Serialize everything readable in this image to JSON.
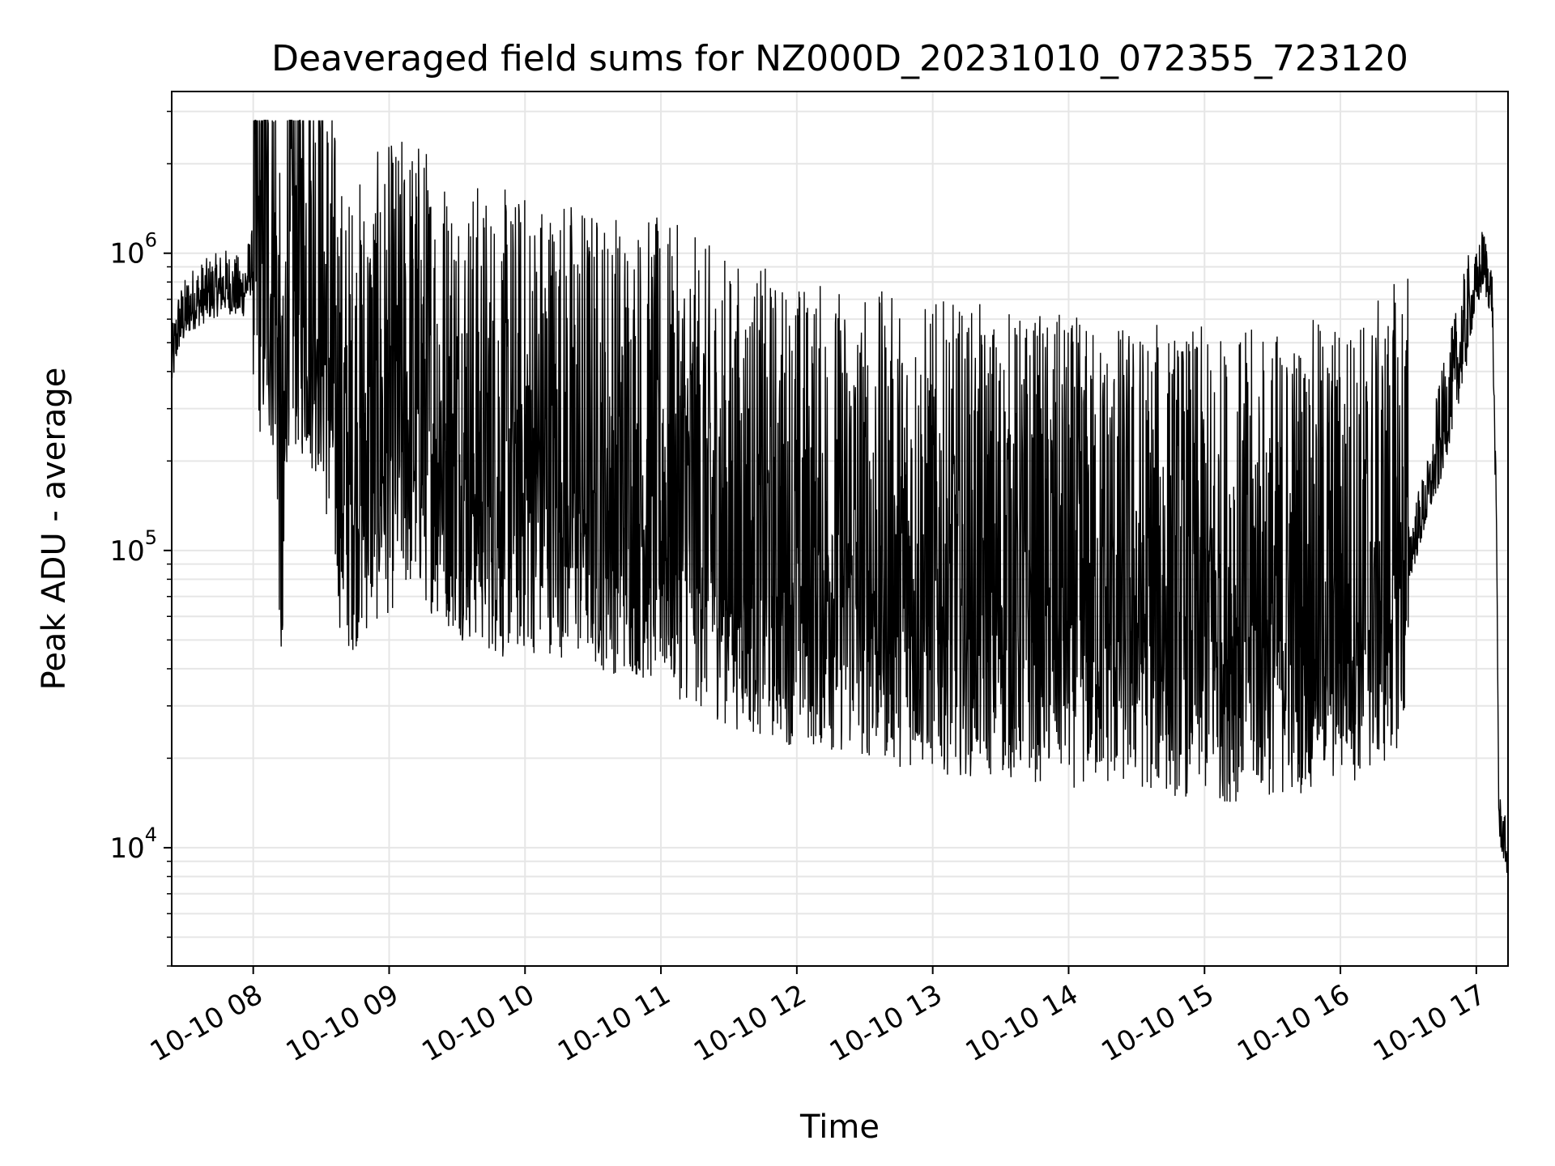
{
  "chart_data": {
    "type": "line",
    "title": "Deaveraged field sums for NZ000D_20231010_072355_723120",
    "xlabel": "Time",
    "ylabel": "Peak ADU - average",
    "yscale": "log",
    "ylim": [
      4000,
      3500000
    ],
    "xlim": [
      "2023-10-10 07:24:00",
      "2023-10-10 17:14:00"
    ],
    "grid": true,
    "line_color": "#000000",
    "x_ticks": [
      {
        "label": "10-10 08",
        "value": "2023-10-10 08:00"
      },
      {
        "label": "10-10 09",
        "value": "2023-10-10 09:00"
      },
      {
        "label": "10-10 10",
        "value": "2023-10-10 10:00"
      },
      {
        "label": "10-10 11",
        "value": "2023-10-10 11:00"
      },
      {
        "label": "10-10 12",
        "value": "2023-10-10 12:00"
      },
      {
        "label": "10-10 13",
        "value": "2023-10-10 13:00"
      },
      {
        "label": "10-10 14",
        "value": "2023-10-10 14:00"
      },
      {
        "label": "10-10 15",
        "value": "2023-10-10 15:00"
      },
      {
        "label": "10-10 16",
        "value": "2023-10-10 16:00"
      },
      {
        "label": "10-10 17",
        "value": "2023-10-10 17:00"
      }
    ],
    "y_ticks": [
      {
        "base": "10",
        "exp": "4",
        "value": 10000
      },
      {
        "base": "10",
        "exp": "5",
        "value": 100000
      },
      {
        "base": "10",
        "exp": "6",
        "value": 1000000
      }
    ],
    "series": [
      {
        "values_note": "",
        "points": [
          [
            "2023-10-10 07:24",
            400000
          ],
          [
            "2023-10-10 07:27",
            550000
          ],
          [
            "2023-10-10 07:33",
            650000
          ],
          [
            "2023-10-10 07:40",
            700000
          ],
          [
            "2023-10-10 07:48",
            750000
          ],
          [
            "2023-10-10 07:55",
            700000
          ],
          [
            "2023-10-10 08:00",
            900000
          ],
          [
            "2023-10-10 08:10",
            700000
          ],
          [
            "2023-10-10 08:13",
            60000
          ],
          [
            "2023-10-10 08:15",
            800000
          ],
          [
            "2023-10-10 08:30",
            600000
          ],
          [
            "2023-10-10 08:40",
            150000
          ],
          [
            "2023-10-10 08:55",
            200000
          ],
          [
            "2023-10-10 09:10",
            250000
          ],
          [
            "2023-10-10 09:30",
            180000
          ],
          [
            "2023-10-10 09:50",
            150000
          ],
          [
            "2023-10-10 10:10",
            160000
          ],
          [
            "2023-10-10 10:30",
            140000
          ],
          [
            "2023-10-10 10:50",
            130000
          ],
          [
            "2023-10-10 11:10",
            110000
          ],
          [
            "2023-10-10 11:30",
            90000
          ],
          [
            "2023-10-10 11:50",
            80000
          ],
          [
            "2023-10-10 12:10",
            75000
          ],
          [
            "2023-10-10 12:30",
            70000
          ],
          [
            "2023-10-10 12:50",
            65000
          ],
          [
            "2023-10-10 13:10",
            62000
          ],
          [
            "2023-10-10 13:30",
            60000
          ],
          [
            "2023-10-10 13:50",
            58000
          ],
          [
            "2023-10-10 14:10",
            55000
          ],
          [
            "2023-10-10 14:30",
            55000
          ],
          [
            "2023-10-10 14:50",
            52000
          ],
          [
            "2023-10-10 15:10",
            50000
          ],
          [
            "2023-10-10 15:30",
            52000
          ],
          [
            "2023-10-10 15:50",
            55000
          ],
          [
            "2023-10-10 16:10",
            60000
          ],
          [
            "2023-10-10 16:20",
            65000
          ],
          [
            "2023-10-10 16:30",
            90000
          ],
          [
            "2023-10-10 16:40",
            160000
          ],
          [
            "2023-10-10 16:50",
            350000
          ],
          [
            "2023-10-10 16:57",
            600000
          ],
          [
            "2023-10-10 17:03",
            900000
          ],
          [
            "2023-10-10 17:07",
            700000
          ],
          [
            "2023-10-10 17:09",
            100000
          ],
          [
            "2023-10-10 17:10",
            12000
          ],
          [
            "2023-10-10 17:14",
            9000
          ]
        ]
      }
    ]
  }
}
